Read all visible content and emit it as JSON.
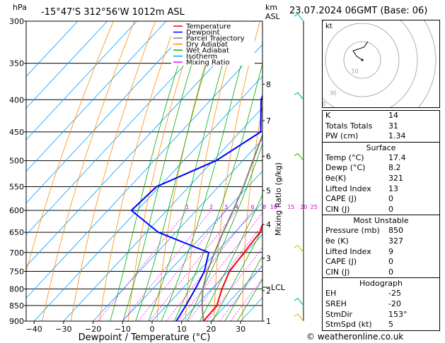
{
  "header": {
    "location": "-15°47'S 312°56'W 1012m ASL",
    "datetime": "23.07.2024 06GMT (Base: 06)",
    "hpa_label": "hPa",
    "km_label": "km",
    "asl_label": "ASL"
  },
  "footer": "© weatheronline.co.uk",
  "legend": [
    {
      "label": "Temperature",
      "color": "#ff0000"
    },
    {
      "label": "Dewpoint",
      "color": "#0000ff"
    },
    {
      "label": "Parcel Trajectory",
      "color": "#808080"
    },
    {
      "label": "Dry Adiabat",
      "color": "#ff8c00"
    },
    {
      "label": "Wet Adiabat",
      "color": "#00aa00"
    },
    {
      "label": "Isotherm",
      "color": "#00a0ff"
    },
    {
      "label": "Mixing Ratio",
      "color": "#ff00ff"
    }
  ],
  "chart_data": {
    "type": "line",
    "xlabel": "Dewpoint / Temperature (°C)",
    "ylabel": "Mixing Ratio (g/kg)",
    "xlim": [
      -40,
      35
    ],
    "ylim": [
      900,
      300
    ],
    "x_ticks": [
      -40,
      -30,
      -20,
      -10,
      0,
      10,
      20,
      30
    ],
    "pressure_levels": [
      300,
      350,
      400,
      450,
      500,
      550,
      600,
      650,
      700,
      750,
      800,
      850,
      900
    ],
    "km_ticks": [
      {
        "label": "1",
        "p": 900
      },
      {
        "label": "2",
        "p": 805
      },
      {
        "label": "3",
        "p": 715
      },
      {
        "label": "4",
        "p": 632
      },
      {
        "label": "5",
        "p": 558
      },
      {
        "label": "6",
        "p": 492
      },
      {
        "label": "7",
        "p": 432
      },
      {
        "label": "8",
        "p": 378
      }
    ],
    "lcl": {
      "label": "LCL",
      "p": 795
    },
    "mixing_ratio_labels": [
      "1",
      "2",
      "3",
      "4",
      "6",
      "8",
      "10",
      "15",
      "20",
      "25"
    ],
    "mixing_ratio_values": [
      1,
      2,
      3,
      4,
      6,
      8,
      10,
      15,
      20,
      25
    ],
    "series": [
      {
        "name": "Temperature",
        "p": [
          900,
          850,
          800,
          750,
          700,
          650,
          600,
          550,
          500,
          450,
          400,
          350,
          300
        ],
        "t": [
          17.4,
          17.0,
          13.5,
          10.5,
          9.5,
          8.5,
          4.0,
          1.0,
          -3.5,
          -10.0,
          -18.5,
          -27.0,
          -34.5
        ]
      },
      {
        "name": "Dewpoint",
        "p": [
          900,
          850,
          800,
          750,
          700,
          650,
          600,
          550,
          500,
          450,
          400,
          350,
          300
        ],
        "t": [
          8.2,
          6.5,
          4.5,
          2.0,
          -2.5,
          -26.0,
          -42.0,
          -41.0,
          -29.0,
          -23.0,
          -33.0,
          -40.0,
          -42.0
        ]
      },
      {
        "name": "Parcel Trajectory",
        "p": [
          900,
          850,
          800,
          750,
          700,
          650,
          600,
          550,
          500,
          450,
          400,
          350,
          300
        ],
        "t": [
          17.4,
          12.0,
          7.0,
          3.0,
          -0.5,
          -4.0,
          -7.5,
          -11.5,
          -16.5,
          -22.0,
          -29.0,
          -37.0,
          -46.0
        ]
      }
    ],
    "wind_barbs_p": [
      300,
      400,
      500,
      700,
      850,
      900
    ]
  },
  "hodograph": {
    "label": "kt",
    "rings": [
      10,
      20,
      30,
      40
    ],
    "ring_labels": [
      "10",
      "30",
      "40"
    ],
    "trace_u": [
      0,
      -3,
      -5,
      -2,
      1,
      3
    ],
    "trace_v": [
      0,
      2,
      5,
      6,
      7,
      10
    ]
  },
  "indices": {
    "basic": [
      {
        "k": "K",
        "v": "14"
      },
      {
        "k": "Totals Totals",
        "v": "31"
      },
      {
        "k": "PW (cm)",
        "v": "1.34"
      }
    ],
    "surface_title": "Surface",
    "surface": [
      {
        "k": "Temp (°C)",
        "v": "17.4"
      },
      {
        "k": "Dewp (°C)",
        "v": "8.2"
      },
      {
        "k": "θe(K)",
        "v": "321"
      },
      {
        "k": "Lifted Index",
        "v": "13"
      },
      {
        "k": "CAPE (J)",
        "v": "0"
      },
      {
        "k": "CIN (J)",
        "v": "0"
      }
    ],
    "mu_title": "Most Unstable",
    "mu": [
      {
        "k": "Pressure (mb)",
        "v": "850"
      },
      {
        "k": "θe (K)",
        "v": "327"
      },
      {
        "k": "Lifted Index",
        "v": "9"
      },
      {
        "k": "CAPE (J)",
        "v": "0"
      },
      {
        "k": "CIN (J)",
        "v": "0"
      }
    ],
    "hodo_title": "Hodograph",
    "hodo": [
      {
        "k": "EH",
        "v": "-25"
      },
      {
        "k": "SREH",
        "v": "-20"
      },
      {
        "k": "StmDir",
        "v": "153°"
      },
      {
        "k": "StmSpd (kt)",
        "v": "5"
      }
    ]
  }
}
